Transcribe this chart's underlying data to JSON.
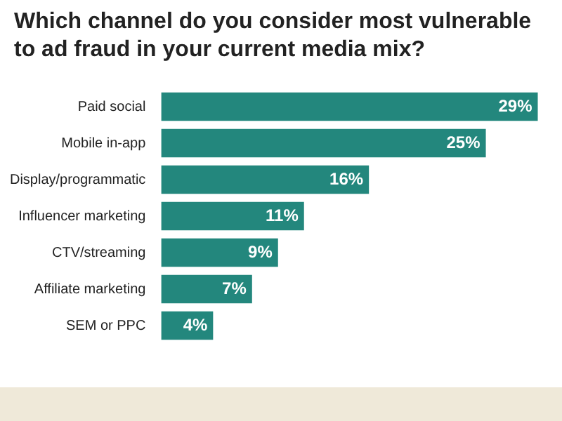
{
  "chart_data": {
    "type": "bar",
    "orientation": "horizontal",
    "title": "Which channel do you consider most vulnerable to ad fraud in your current media mix?",
    "categories": [
      "Paid social",
      "Mobile in-app",
      "Display/programmatic",
      "Influencer marketing",
      "CTV/streaming",
      "Affiliate marketing",
      "SEM or PPC"
    ],
    "values": [
      29,
      25,
      16,
      11,
      9,
      7,
      4
    ],
    "value_labels": [
      "29%",
      "25%",
      "16%",
      "11%",
      "9%",
      "7%",
      "4%"
    ],
    "color": "#23877d",
    "grid": false,
    "legend": false
  }
}
